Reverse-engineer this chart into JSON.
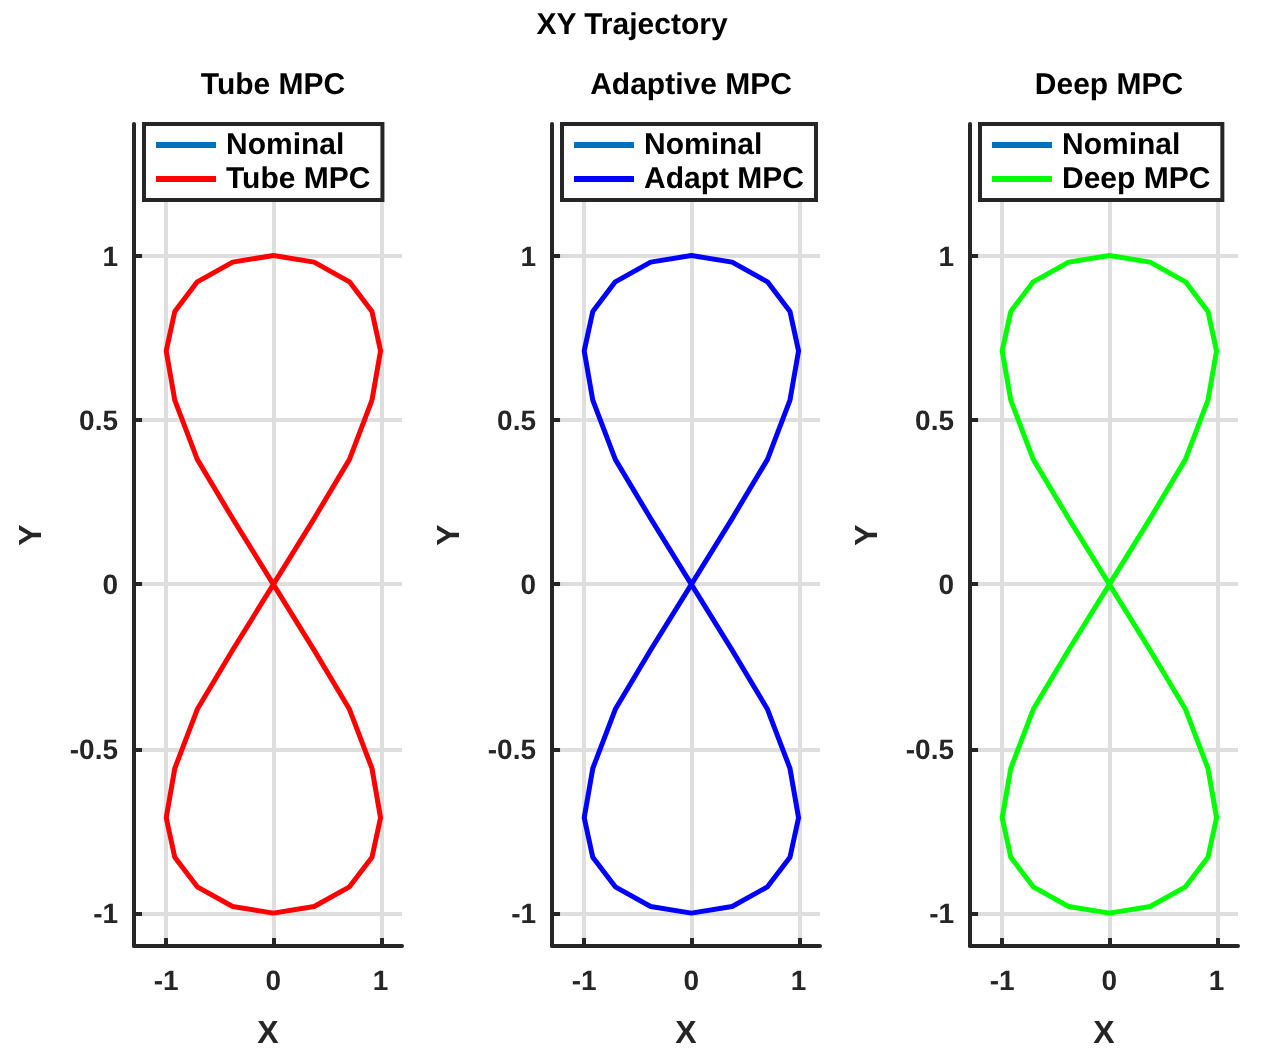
{
  "chart_data": [
    {
      "type": "line",
      "title": "Tube MPC",
      "xlabel": "X",
      "ylabel": "Y",
      "annotations": [
        "XY Trajectory"
      ],
      "xlim": [
        -1.3,
        1.2
      ],
      "xticks": [
        -1,
        0,
        1
      ],
      "ylim": [
        -1.1,
        1.4
      ],
      "yticks": [
        -1,
        -0.5,
        0,
        0.5,
        1
      ],
      "grid": true,
      "legend": "top",
      "marker": "none",
      "line_style": "solid",
      "series": [
        {
          "name": "Nominal",
          "color": "#0072bd",
          "values": [
            null,
            null,
            null,
            null,
            null,
            null,
            null,
            null,
            null,
            null,
            null,
            null,
            null,
            null,
            null,
            null,
            null,
            null,
            null,
            null,
            null,
            null,
            null,
            null,
            null,
            null,
            null,
            null,
            null,
            null,
            null,
            null,
            null,
            null,
            null,
            null,
            null,
            null,
            null,
            null,
            null
          ]
        },
        {
          "name": "Tube MPC",
          "color": "#ff0000",
          "x": [
            0,
            0.38,
            0.71,
            0.92,
            1,
            null,
            1,
            0.92,
            0.71,
            0.38,
            0,
            -0.38,
            -0.71,
            -0.92,
            -1,
            null,
            -1,
            -0.92,
            -0.71,
            -0.38,
            0,
            0.38,
            0.71,
            0.92,
            1,
            null,
            1,
            0.92,
            0.71,
            0.38,
            0,
            -0.38,
            -0.71,
            -0.92,
            -1,
            null,
            -1,
            -0.92,
            -0.71,
            -0.38,
            0
          ],
          "values": [
            0,
            0.2,
            0.38,
            0.56,
            0.71,
            null,
            0.71,
            0.83,
            0.92,
            0.98,
            1,
            0.98,
            0.92,
            0.83,
            0.71,
            null,
            0.71,
            0.56,
            0.38,
            0.2,
            0,
            -0.2,
            -0.38,
            -0.56,
            -0.71,
            null,
            -0.71,
            -0.83,
            -0.92,
            -0.98,
            -1,
            -0.98,
            -0.92,
            -0.83,
            -0.71,
            null,
            -0.71,
            -0.56,
            -0.38,
            -0.2,
            0
          ]
        }
      ]
    },
    {
      "type": "line",
      "title": "Adaptive MPC",
      "xlabel": "X",
      "ylabel": "Y",
      "xlim": [
        -1.3,
        1.2
      ],
      "xticks": [
        -1,
        0,
        1
      ],
      "ylim": [
        -1.1,
        1.4
      ],
      "yticks": [
        -1,
        -0.5,
        0,
        0.5,
        1
      ],
      "grid": true,
      "legend": "top",
      "marker": "none",
      "line_style": "solid",
      "series": [
        {
          "name": "Nominal",
          "color": "#0072bd",
          "values": [
            null,
            null,
            null,
            null,
            null,
            null,
            null,
            null,
            null,
            null,
            null,
            null,
            null,
            null,
            null,
            null,
            null,
            null,
            null,
            null,
            null,
            null,
            null,
            null,
            null,
            null,
            null,
            null,
            null,
            null,
            null,
            null,
            null,
            null,
            null,
            null,
            null,
            null,
            null,
            null,
            null
          ]
        },
        {
          "name": "Adapt MPC",
          "color": "#0000ff",
          "x": [
            0,
            0.38,
            0.71,
            0.92,
            1,
            null,
            1,
            0.92,
            0.71,
            0.38,
            0,
            -0.38,
            -0.71,
            -0.92,
            -1,
            null,
            -1,
            -0.92,
            -0.71,
            -0.38,
            0,
            0.38,
            0.71,
            0.92,
            1,
            null,
            1,
            0.92,
            0.71,
            0.38,
            0,
            -0.38,
            -0.71,
            -0.92,
            -1,
            null,
            -1,
            -0.92,
            -0.71,
            -0.38,
            0
          ],
          "values": [
            0,
            0.2,
            0.38,
            0.56,
            0.71,
            null,
            0.71,
            0.83,
            0.92,
            0.98,
            1,
            0.98,
            0.92,
            0.83,
            0.71,
            null,
            0.71,
            0.56,
            0.38,
            0.2,
            0,
            -0.2,
            -0.38,
            -0.56,
            -0.71,
            null,
            -0.71,
            -0.83,
            -0.92,
            -0.98,
            -1,
            -0.98,
            -0.92,
            -0.83,
            -0.71,
            null,
            -0.71,
            -0.56,
            -0.38,
            -0.2,
            0
          ]
        }
      ]
    },
    {
      "type": "line",
      "title": "Deep MPC",
      "xlabel": "X",
      "ylabel": "Y",
      "xlim": [
        -1.3,
        1.2
      ],
      "xticks": [
        -1,
        0,
        1
      ],
      "ylim": [
        -1.1,
        1.4
      ],
      "yticks": [
        -1,
        -0.5,
        0,
        0.5,
        1
      ],
      "grid": true,
      "legend": "top",
      "marker": "none",
      "line_style": "solid",
      "series": [
        {
          "name": "Nominal",
          "color": "#0072bd",
          "values": [
            null,
            null,
            null,
            null,
            null,
            null,
            null,
            null,
            null,
            null,
            null,
            null,
            null,
            null,
            null,
            null,
            null,
            null,
            null,
            null,
            null,
            null,
            null,
            null,
            null,
            null,
            null,
            null,
            null,
            null,
            null,
            null,
            null,
            null,
            null,
            null,
            null,
            null,
            null,
            null,
            null
          ]
        },
        {
          "name": "Deep MPC",
          "color": "#00ff00",
          "x": [
            0,
            0.38,
            0.71,
            0.92,
            1,
            null,
            1,
            0.92,
            0.71,
            0.38,
            0,
            -0.38,
            -0.71,
            -0.92,
            -1,
            null,
            -1,
            -0.92,
            -0.71,
            -0.38,
            0,
            0.38,
            0.71,
            0.92,
            1,
            null,
            1,
            0.92,
            0.71,
            0.38,
            0,
            -0.38,
            -0.71,
            -0.92,
            -1,
            null,
            -1,
            -0.92,
            -0.71,
            -0.38,
            0
          ],
          "values": [
            0,
            0.2,
            0.38,
            0.56,
            0.71,
            null,
            0.71,
            0.83,
            0.92,
            0.98,
            1,
            0.98,
            0.92,
            0.83,
            0.71,
            null,
            0.71,
            0.56,
            0.38,
            0.2,
            0,
            -0.2,
            -0.38,
            -0.56,
            -0.71,
            null,
            -0.71,
            -0.83,
            -0.92,
            -0.98,
            -1,
            -0.98,
            -0.92,
            -0.83,
            -0.71,
            null,
            -0.71,
            -0.56,
            -0.38,
            -0.2,
            0
          ]
        }
      ]
    }
  ]
}
